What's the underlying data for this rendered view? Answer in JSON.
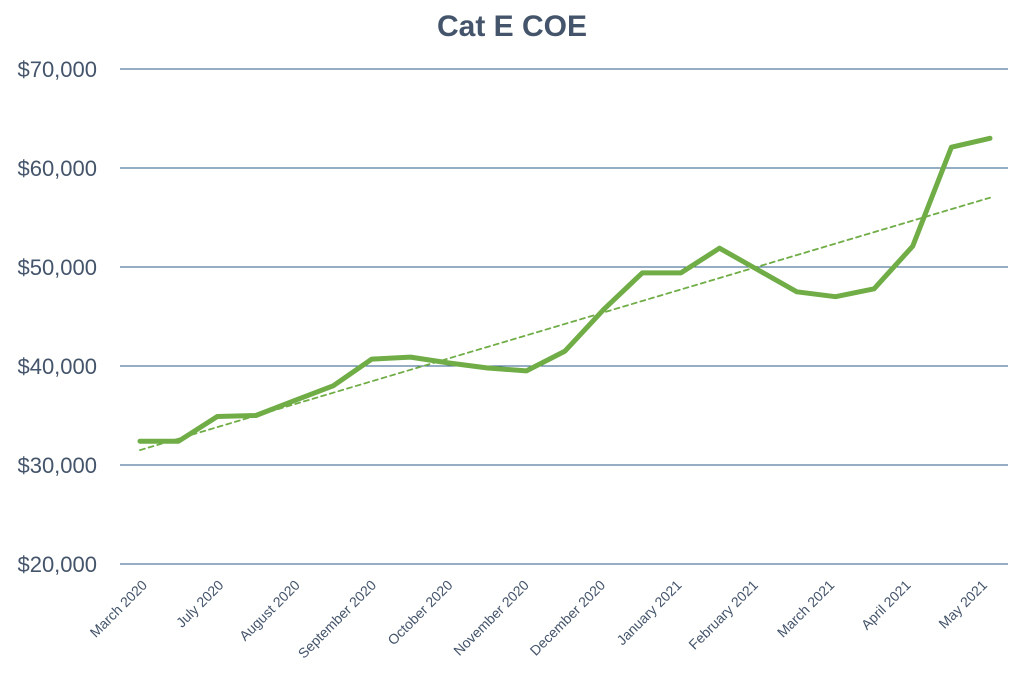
{
  "chart_data": {
    "type": "line",
    "title": "Cat E COE",
    "xlabel": "",
    "ylabel": "",
    "ylim": [
      20000,
      70000
    ],
    "yticks": [
      20000,
      30000,
      40000,
      50000,
      60000,
      70000
    ],
    "ytick_labels": [
      "$20,000",
      "$30,000",
      "$40,000",
      "$50,000",
      "$60,000",
      "$70,000"
    ],
    "x_tick_labels": [
      "March 2020",
      "July 2020",
      "August 2020",
      "September 2020",
      "October 2020",
      "November 2020",
      "December 2020",
      "January 2021",
      "February 2021",
      "March 2021",
      "April 2021",
      "May 2021"
    ],
    "grid": true,
    "legend": "none",
    "series": [
      {
        "name": "Cat E COE",
        "color": "#70ad47",
        "style": "solid",
        "values": [
          32400,
          32400,
          34900,
          35000,
          36500,
          38000,
          40700,
          40900,
          40300,
          39800,
          39500,
          41500,
          45700,
          49400,
          49400,
          51900,
          49700,
          47500,
          47000,
          47800,
          52100,
          62100,
          63000
        ]
      },
      {
        "name": "Trend",
        "color": "#70ad47",
        "style": "dashed",
        "values": [
          31500,
          57000
        ]
      }
    ]
  }
}
